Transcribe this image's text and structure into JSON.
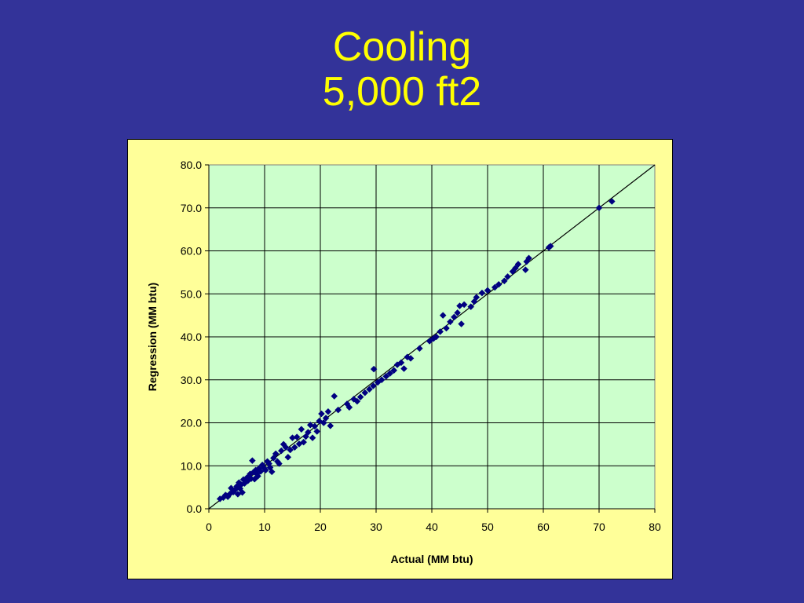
{
  "slide": {
    "title_line1": "Cooling",
    "title_line2": "5,000 ft2"
  },
  "colors": {
    "background": "#333399",
    "title": "#FFFF00",
    "chart_area": "#FFFF99",
    "plot_area": "#CCFFCC",
    "marker": "#000080"
  },
  "chart_data": {
    "type": "scatter",
    "title": "",
    "xlabel": "Actual (MM btu)",
    "ylabel": "Regression (MM btu)",
    "xlim": [
      0,
      80
    ],
    "ylim": [
      0,
      80
    ],
    "x_ticks": [
      "0",
      "10",
      "20",
      "30",
      "40",
      "50",
      "60",
      "70",
      "80"
    ],
    "y_ticks": [
      "0.0",
      "10.0",
      "20.0",
      "30.0",
      "40.0",
      "50.0",
      "60.0",
      "70.0",
      "80.0"
    ],
    "grid": true,
    "reference_line": {
      "from": [
        0,
        0
      ],
      "to": [
        80,
        80
      ]
    },
    "series": [
      {
        "marker": "diamond",
        "points": [
          [
            2.0,
            2.3
          ],
          [
            2.6,
            2.6
          ],
          [
            3.0,
            3.2
          ],
          [
            3.4,
            2.8
          ],
          [
            3.8,
            3.5
          ],
          [
            4.0,
            4.8
          ],
          [
            4.4,
            3.9
          ],
          [
            4.7,
            4.4
          ],
          [
            5.0,
            5.2
          ],
          [
            5.2,
            3.4
          ],
          [
            5.4,
            6.1
          ],
          [
            5.6,
            4.7
          ],
          [
            5.8,
            5.6
          ],
          [
            6.0,
            3.8
          ],
          [
            6.2,
            6.8
          ],
          [
            6.4,
            5.9
          ],
          [
            6.6,
            6.3
          ],
          [
            6.8,
            7.2
          ],
          [
            7.0,
            6.5
          ],
          [
            7.2,
            7.6
          ],
          [
            7.4,
            8.1
          ],
          [
            7.6,
            7.0
          ],
          [
            7.8,
            11.2
          ],
          [
            8.0,
            8.5
          ],
          [
            8.2,
            6.9
          ],
          [
            8.4,
            9.0
          ],
          [
            8.6,
            8.1
          ],
          [
            8.8,
            7.6
          ],
          [
            9.0,
            9.4
          ],
          [
            9.3,
            8.7
          ],
          [
            9.6,
            10.2
          ],
          [
            9.9,
            9.5
          ],
          [
            10.2,
            9.0
          ],
          [
            10.5,
            11.0
          ],
          [
            10.8,
            10.5
          ],
          [
            11.0,
            9.6
          ],
          [
            11.3,
            8.6
          ],
          [
            11.6,
            11.8
          ],
          [
            12.0,
            12.8
          ],
          [
            12.3,
            11.0
          ],
          [
            12.6,
            10.5
          ],
          [
            13.0,
            13.5
          ],
          [
            13.4,
            15.0
          ],
          [
            13.8,
            14.3
          ],
          [
            14.2,
            12.0
          ],
          [
            14.6,
            13.7
          ],
          [
            15.0,
            16.5
          ],
          [
            15.4,
            14.3
          ],
          [
            15.8,
            16.7
          ],
          [
            16.2,
            15.1
          ],
          [
            16.6,
            18.5
          ],
          [
            17.0,
            15.5
          ],
          [
            17.4,
            16.8
          ],
          [
            17.8,
            17.8
          ],
          [
            18.2,
            19.5
          ],
          [
            18.6,
            16.5
          ],
          [
            19.0,
            19.2
          ],
          [
            19.4,
            18.0
          ],
          [
            19.8,
            20.4
          ],
          [
            20.2,
            22.1
          ],
          [
            20.6,
            20.0
          ],
          [
            21.0,
            21.1
          ],
          [
            21.4,
            22.6
          ],
          [
            21.8,
            19.3
          ],
          [
            22.5,
            26.2
          ],
          [
            23.2,
            23.0
          ],
          [
            24.8,
            24.4
          ],
          [
            25.2,
            23.6
          ],
          [
            26.0,
            25.5
          ],
          [
            26.6,
            25.0
          ],
          [
            27.2,
            26.0
          ],
          [
            28.0,
            27.0
          ],
          [
            28.8,
            27.8
          ],
          [
            29.5,
            28.6
          ],
          [
            29.6,
            32.5
          ],
          [
            30.3,
            29.4
          ],
          [
            31.0,
            30.0
          ],
          [
            31.8,
            30.8
          ],
          [
            32.5,
            31.5
          ],
          [
            33.2,
            32.2
          ],
          [
            33.8,
            33.5
          ],
          [
            34.5,
            34.0
          ],
          [
            35.0,
            32.6
          ],
          [
            35.6,
            35.3
          ],
          [
            36.2,
            35.0
          ],
          [
            37.8,
            37.3
          ],
          [
            39.6,
            39.0
          ],
          [
            40.3,
            39.6
          ],
          [
            40.8,
            40.0
          ],
          [
            41.5,
            41.2
          ],
          [
            42.0,
            45.0
          ],
          [
            42.6,
            42.0
          ],
          [
            43.3,
            43.5
          ],
          [
            44.0,
            44.6
          ],
          [
            44.6,
            45.6
          ],
          [
            45.0,
            47.2
          ],
          [
            45.3,
            43.0
          ],
          [
            45.8,
            47.5
          ],
          [
            47.0,
            47.0
          ],
          [
            47.6,
            48.2
          ],
          [
            48.0,
            49.2
          ],
          [
            49.0,
            50.2
          ],
          [
            50.0,
            50.8
          ],
          [
            51.3,
            51.5
          ],
          [
            52.0,
            52.2
          ],
          [
            53.0,
            53.0
          ],
          [
            53.6,
            54.0
          ],
          [
            54.5,
            55.2
          ],
          [
            55.0,
            56.0
          ],
          [
            55.5,
            56.9
          ],
          [
            56.8,
            55.6
          ],
          [
            57.0,
            57.5
          ],
          [
            57.4,
            58.3
          ],
          [
            61.0,
            60.8
          ],
          [
            61.3,
            61.1
          ],
          [
            70.0,
            70.0
          ],
          [
            72.3,
            71.5
          ]
        ]
      }
    ]
  }
}
